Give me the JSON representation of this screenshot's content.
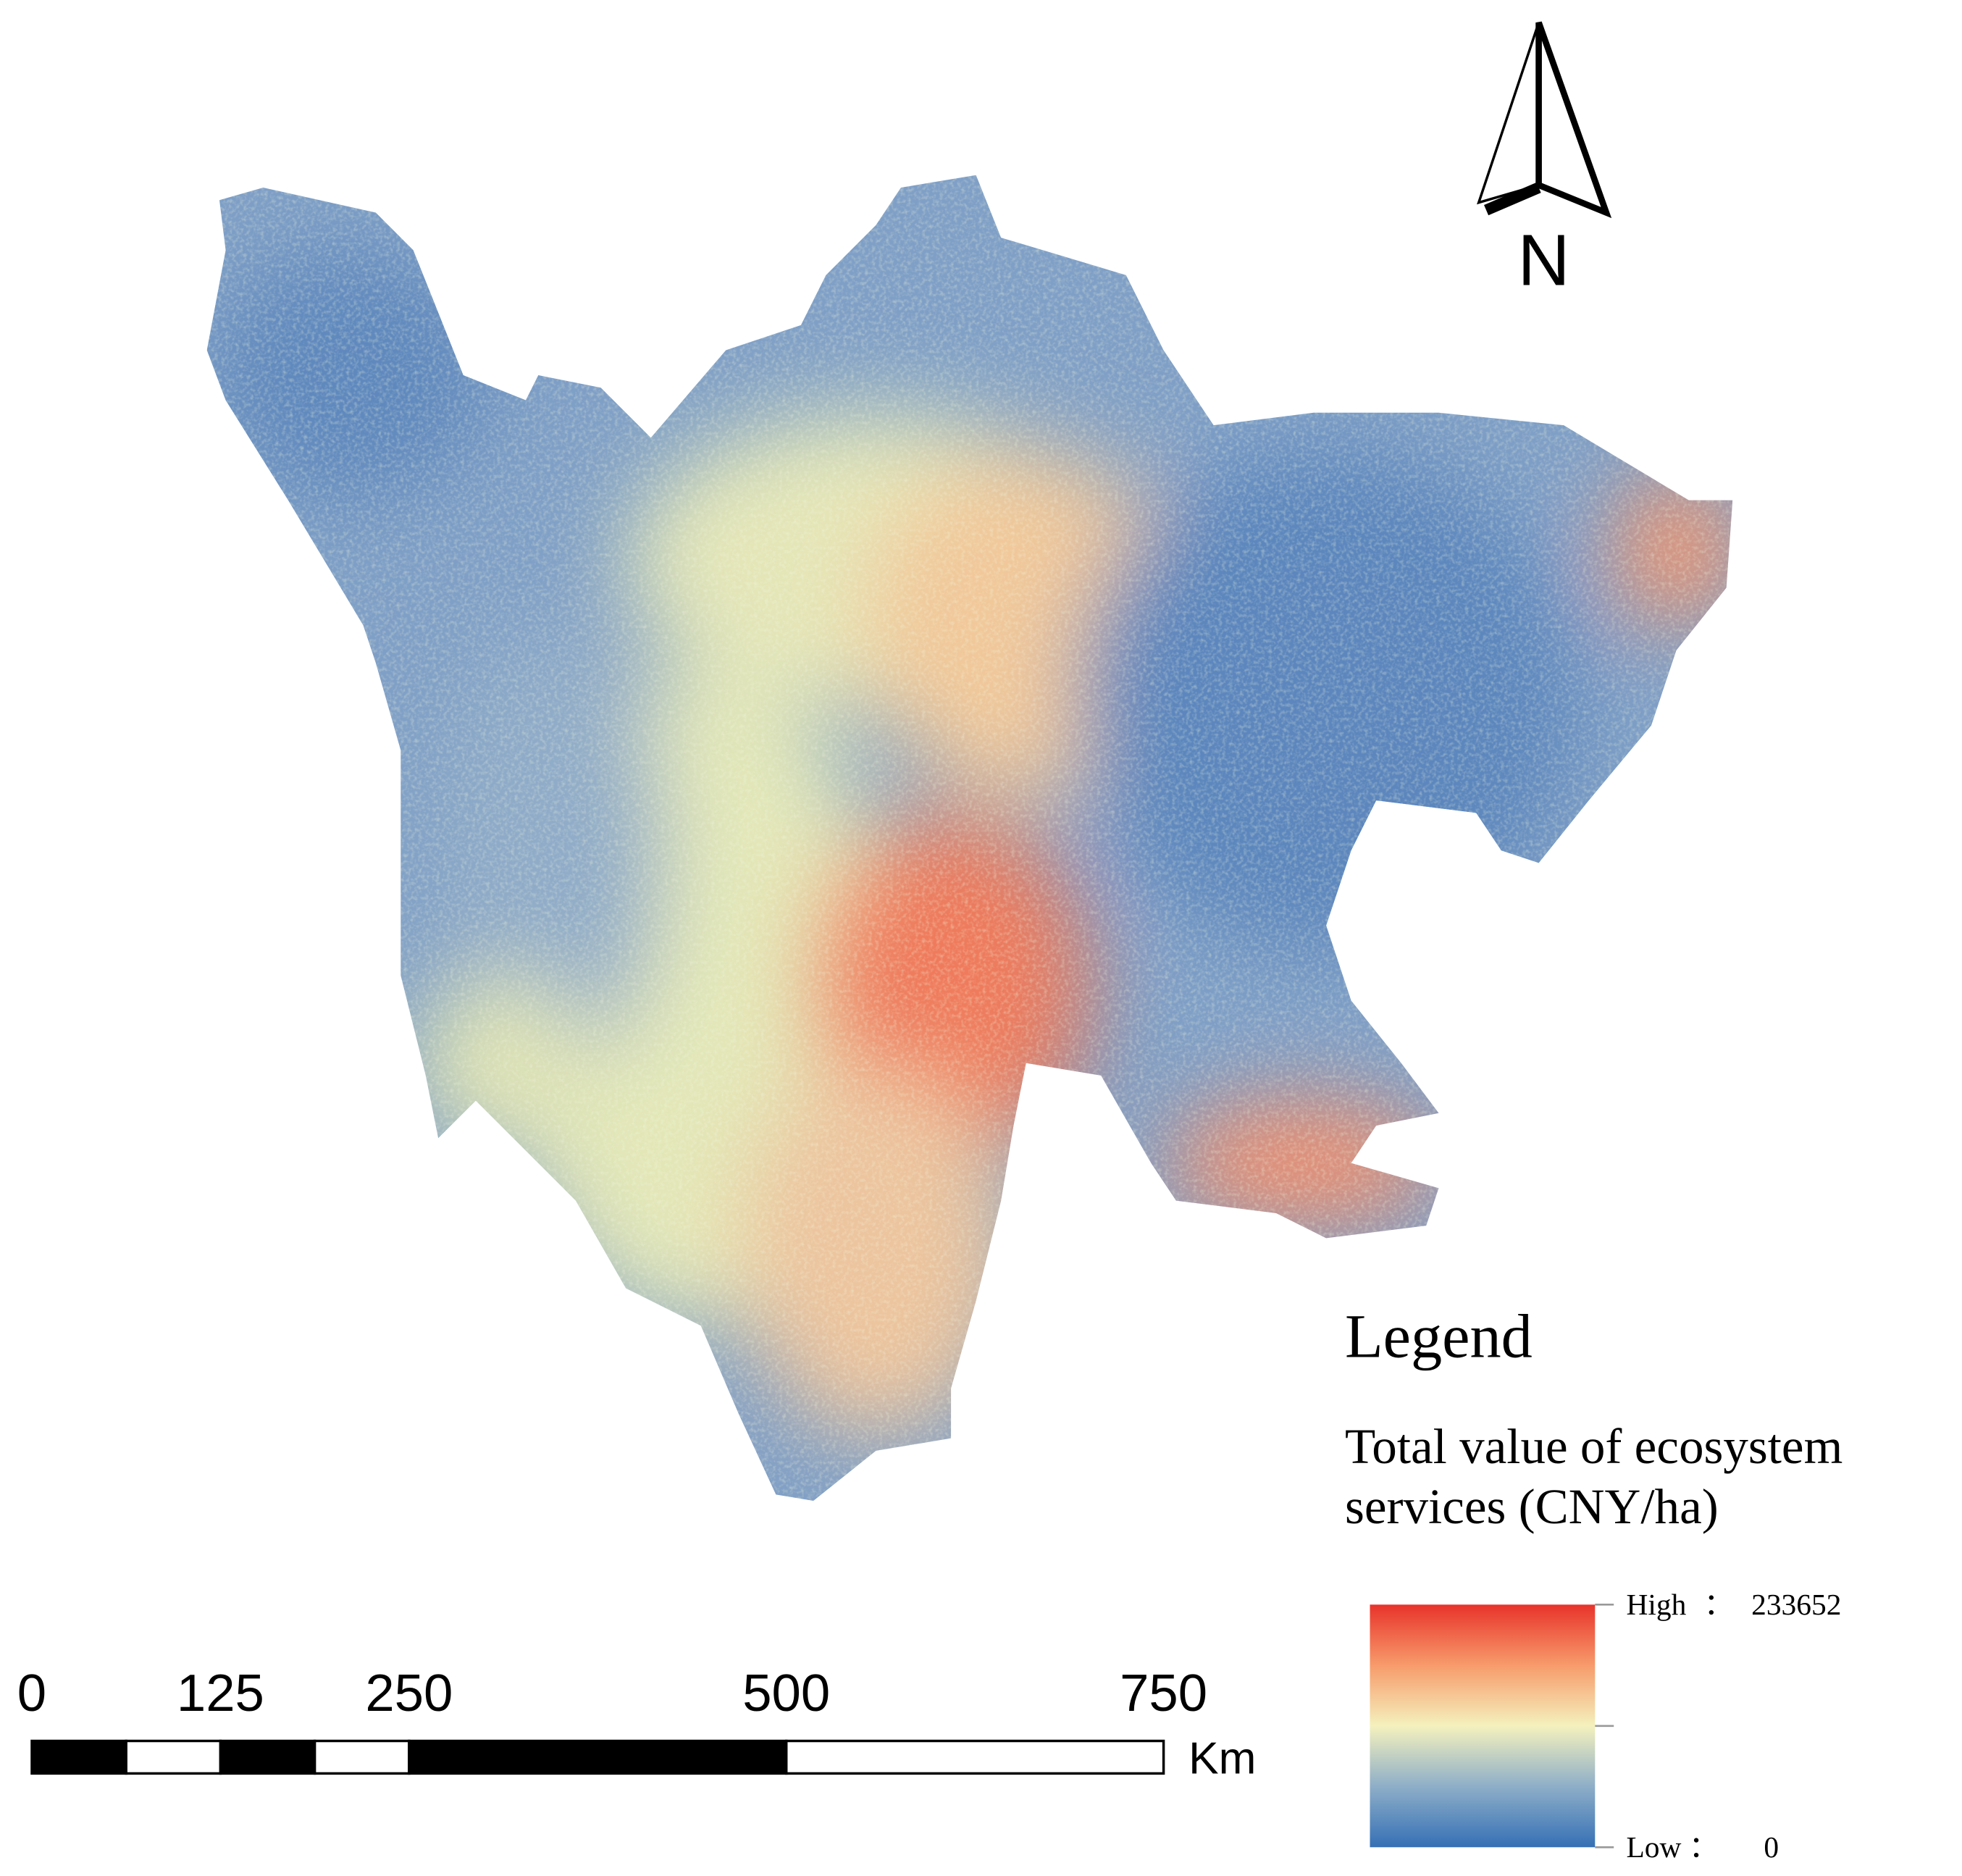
{
  "north_arrow": {
    "label": "N"
  },
  "legend": {
    "title": "Legend",
    "subtitle_lines": [
      "Total value of ecosystem",
      "services (CNY/ha)"
    ],
    "high": {
      "label": "High",
      "value": 233652
    },
    "low": {
      "label": "Low",
      "value": 0
    },
    "separator": "："
  },
  "scale_bar": {
    "unit": "Km",
    "ticks": [
      0,
      125,
      250,
      500,
      750
    ]
  }
}
